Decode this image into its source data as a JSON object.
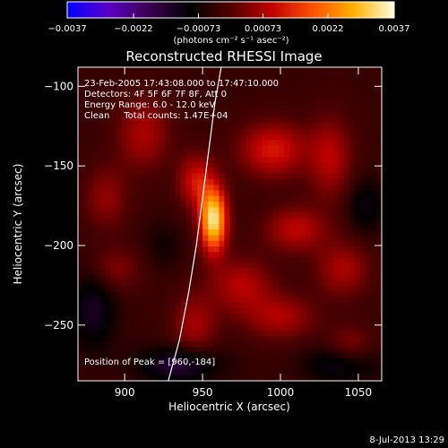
{
  "chart_data": {
    "type": "heatmap",
    "title": "Reconstructed RHESSI Image",
    "xlabel": "Heliocentric X (arcsec)",
    "ylabel": "Heliocentric Y (arcsec)",
    "xlim": [
      870,
      1065
    ],
    "ylim": [
      -285,
      -88
    ],
    "x_ticks": [
      900,
      950,
      1000,
      1050
    ],
    "y_ticks": [
      -100,
      -150,
      -200,
      -250
    ],
    "x_tick_labels": [
      "900",
      "950",
      "1000",
      "1050"
    ],
    "y_tick_labels": [
      "−100",
      "−150",
      "−200",
      "−250"
    ],
    "colorbar": {
      "min": -0.0037,
      "max": 0.0037,
      "ticks": [
        -0.0037,
        -0.0022,
        -0.00073,
        0.00073,
        0.0022,
        0.0037
      ],
      "tick_labels": [
        "−0.0037",
        "−0.0022",
        "−0.00073",
        "0.00073",
        "0.0022",
        "0.0037"
      ],
      "unit_label": "(photons cm⁻² s⁻¹ asec⁻²)",
      "colors": [
        "#0000ff",
        "#5a00c8",
        "#3c0050",
        "#000000",
        "#500000",
        "#c00000",
        "#ff5000",
        "#ffb000",
        "#ffffe0"
      ]
    },
    "annotations": [
      "23-Feb-2005 17:43:08.000 to 17:47:10.000",
      "Detectors: 4F 5F 6F 7F 8F, Att 0",
      "Energy Range: 6.0 - 12.0 keV",
      "Clean     Total counts: 1.47E+04"
    ],
    "peak_label": "Position of Peak = [960,-184]",
    "peak": {
      "x": 960,
      "y": -184
    },
    "sources": [
      {
        "x": 957,
        "y": -184,
        "amp": 1.0,
        "sx": 6,
        "sy": 14
      },
      {
        "x": 946,
        "y": -160,
        "amp": 0.38,
        "sx": 8,
        "sy": 12
      },
      {
        "x": 995,
        "y": -140,
        "amp": 0.4,
        "sx": 15,
        "sy": 12
      },
      {
        "x": 1032,
        "y": -145,
        "amp": 0.3,
        "sx": 10,
        "sy": 18
      },
      {
        "x": 1010,
        "y": -190,
        "amp": 0.32,
        "sx": 14,
        "sy": 10
      },
      {
        "x": 1040,
        "y": -215,
        "amp": 0.28,
        "sx": 12,
        "sy": 12
      },
      {
        "x": 975,
        "y": -225,
        "amp": 0.3,
        "sx": 14,
        "sy": 12
      },
      {
        "x": 1000,
        "y": -245,
        "amp": 0.28,
        "sx": 16,
        "sy": 10
      },
      {
        "x": 945,
        "y": -250,
        "amp": 0.26,
        "sx": 10,
        "sy": 14
      },
      {
        "x": 912,
        "y": -130,
        "amp": 0.28,
        "sx": 12,
        "sy": 16
      },
      {
        "x": 888,
        "y": -170,
        "amp": 0.22,
        "sx": 10,
        "sy": 14
      },
      {
        "x": 893,
        "y": -215,
        "amp": 0.2,
        "sx": 12,
        "sy": 10
      },
      {
        "x": 1045,
        "y": -265,
        "amp": 0.22,
        "sx": 10,
        "sy": 10
      },
      {
        "x": 935,
        "y": -275,
        "amp": -0.35,
        "sx": 18,
        "sy": 8
      },
      {
        "x": 1040,
        "y": -275,
        "amp": -0.3,
        "sx": 16,
        "sy": 8
      },
      {
        "x": 880,
        "y": -240,
        "amp": -0.28,
        "sx": 10,
        "sy": 18
      },
      {
        "x": 1055,
        "y": -175,
        "amp": -0.22,
        "sx": 8,
        "sy": 12
      },
      {
        "x": 925,
        "y": -200,
        "amp": -0.12,
        "sx": 8,
        "sy": 10
      }
    ],
    "limb_curve": [
      [
        928,
        -285
      ],
      [
        935,
        -260
      ],
      [
        941,
        -230
      ],
      [
        946,
        -200
      ],
      [
        950,
        -170
      ],
      [
        954,
        -140
      ],
      [
        958,
        -110
      ],
      [
        962,
        -88
      ]
    ],
    "grid": false
  },
  "footer": {
    "date": "8-Jul-2013 13:29"
  }
}
